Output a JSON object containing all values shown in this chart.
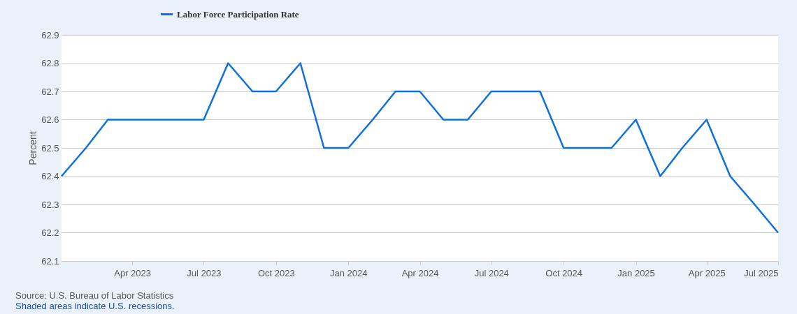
{
  "chart_data": {
    "type": "line",
    "ylabel": "Percent",
    "x": [
      "2023-01",
      "2023-02",
      "2023-03",
      "2023-04",
      "2023-05",
      "2023-06",
      "2023-07",
      "2023-08",
      "2023-09",
      "2023-10",
      "2023-11",
      "2023-12",
      "2024-01",
      "2024-02",
      "2024-03",
      "2024-04",
      "2024-05",
      "2024-06",
      "2024-07",
      "2024-08",
      "2024-09",
      "2024-10",
      "2024-11",
      "2024-12",
      "2025-01",
      "2025-02",
      "2025-03",
      "2025-04",
      "2025-05",
      "2025-06",
      "2025-07"
    ],
    "series": [
      {
        "name": "Labor Force Participation Rate",
        "color": "#0f6fe0",
        "values": [
          62.4,
          62.5,
          62.6,
          62.6,
          62.6,
          62.6,
          62.6,
          62.8,
          62.7,
          62.7,
          62.8,
          62.5,
          62.5,
          62.6,
          62.7,
          62.7,
          62.6,
          62.6,
          62.7,
          62.7,
          62.7,
          62.5,
          62.5,
          62.5,
          62.6,
          62.4,
          62.5,
          62.6,
          62.4,
          62.3,
          62.2
        ]
      }
    ],
    "xlim": [
      "2023-01",
      "2025-07"
    ],
    "xticks": [
      {
        "value": "2023-04",
        "label": "Apr 2023"
      },
      {
        "value": "2023-07",
        "label": "Jul 2023"
      },
      {
        "value": "2023-10",
        "label": "Oct 2023"
      },
      {
        "value": "2024-01",
        "label": "Jan 2024"
      },
      {
        "value": "2024-04",
        "label": "Apr 2024"
      },
      {
        "value": "2024-07",
        "label": "Jul 2024"
      },
      {
        "value": "2024-10",
        "label": "Oct 2024"
      },
      {
        "value": "2025-01",
        "label": "Jan 2025"
      },
      {
        "value": "2025-04",
        "label": "Apr 2025"
      },
      {
        "value": "2025-07",
        "label": "Jul 2025"
      }
    ],
    "ylim": [
      62.1,
      62.9
    ],
    "yticks": [
      62.1,
      62.2,
      62.3,
      62.4,
      62.5,
      62.6,
      62.7,
      62.8,
      62.9
    ],
    "grid": "y",
    "legend": "top left",
    "line_style": "solid",
    "marker": "none",
    "annotations": [
      "Source: U.S. Bureau of Labor Statistics",
      "Shaded areas indicate U.S. recessions."
    ]
  }
}
